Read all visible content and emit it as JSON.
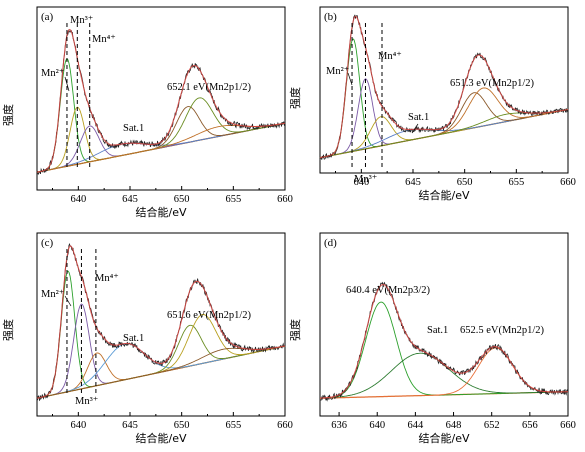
{
  "chart_data": [
    {
      "type": "line",
      "panel": "(a)",
      "xlabel": "结合能/eV",
      "ylabel": "强度",
      "xlim": [
        636,
        660
      ],
      "ylim": [
        0,
        1
      ],
      "xticks": [
        640,
        645,
        650,
        655,
        660
      ],
      "annotations": [
        {
          "text": "Mn²⁺",
          "x": 638.9
        },
        {
          "text": "Mn³⁺",
          "x": 639.9
        },
        {
          "text": "Mn⁴⁺",
          "x": 641.1
        },
        {
          "text": "Sat.1",
          "x": 644.5
        },
        {
          "text": "652.1 eV(Mn2p1/2)",
          "x": 652.1
        }
      ],
      "dashed_lines": [
        638.9,
        639.9,
        641.1
      ],
      "background_start": 0.06,
      "background_end": 0.36,
      "components": [
        {
          "name": "Mn²⁺",
          "color": "#2ca02c",
          "center": 638.9,
          "height": 0.66,
          "width": 0.65
        },
        {
          "name": "Mn³⁺",
          "color": "#b8a020",
          "center": 639.9,
          "height": 0.35,
          "width": 0.7
        },
        {
          "name": "Mn⁴⁺",
          "color": "#7b5aa6",
          "center": 641.1,
          "height": 0.22,
          "width": 0.9
        },
        {
          "name": "Sat.1",
          "color": "#5b7fc7",
          "center": 644.2,
          "height": 0.07,
          "width": 2.2
        },
        {
          "name": "Mn2p1/2 a",
          "color": "#8b5a2b",
          "center": 650.6,
          "height": 0.22,
          "width": 1.1
        },
        {
          "name": "Mn2p1/2 b",
          "color": "#6b8e23",
          "center": 651.7,
          "height": 0.26,
          "width": 1.3
        },
        {
          "name": "Mn2p1/2 c",
          "color": "#c0712a",
          "center": 653.6,
          "height": 0.06,
          "width": 2.2
        }
      ]
    },
    {
      "type": "line",
      "panel": "(b)",
      "xlabel": "结合能/eV",
      "ylabel": "强度",
      "xlim": [
        636,
        660
      ],
      "ylim": [
        0,
        1
      ],
      "xticks": [
        640,
        645,
        650,
        655,
        660
      ],
      "annotations": [
        {
          "text": "Mn²⁺",
          "x": 639.1
        },
        {
          "text": "Mn³⁺",
          "x": 640.4
        },
        {
          "text": "Mn⁴⁺",
          "x": 642.0
        },
        {
          "text": "Sat.1",
          "x": 644.5
        },
        {
          "text": "651.3 eV(Mn2p1/2)",
          "x": 651.3
        }
      ],
      "dashed_lines": [
        639.1,
        640.4,
        642.0
      ],
      "background_start": 0.05,
      "background_end": 0.38,
      "components": [
        {
          "name": "Mn²⁺",
          "color": "#2ca02c",
          "center": 639.2,
          "height": 0.77,
          "width": 0.65
        },
        {
          "name": "Mn³⁺",
          "color": "#7b5aa6",
          "center": 640.4,
          "height": 0.48,
          "width": 0.7
        },
        {
          "name": "Mn⁴⁺",
          "color": "#b8a020",
          "center": 641.9,
          "height": 0.2,
          "width": 1.0
        },
        {
          "name": "Sat.1",
          "color": "#5b7fc7",
          "center": 644.6,
          "height": 0.07,
          "width": 2.2
        },
        {
          "name": "Mn2p1/2 a",
          "color": "#8b5a2b",
          "center": 650.9,
          "height": 0.24,
          "width": 1.2
        },
        {
          "name": "Mn2p1/2 b",
          "color": "#c0712a",
          "center": 651.8,
          "height": 0.26,
          "width": 1.4
        },
        {
          "name": "Mn2p1/2 c",
          "color": "#6b8e23",
          "center": 654.0,
          "height": 0.05,
          "width": 2.0
        }
      ]
    },
    {
      "type": "line",
      "panel": "(c)",
      "xlabel": "结合能/eV",
      "ylabel": "强度",
      "xlim": [
        636,
        660
      ],
      "ylim": [
        0,
        1
      ],
      "xticks": [
        640,
        645,
        650,
        655,
        660
      ],
      "annotations": [
        {
          "text": "Mn²⁺",
          "x": 638.9
        },
        {
          "text": "Mn³⁺",
          "x": 640.3
        },
        {
          "text": "Mn⁴⁺",
          "x": 641.7
        },
        {
          "text": "Sat.1",
          "x": 644.5
        },
        {
          "text": "651.6 eV(Mn2p1/2)",
          "x": 651.6
        }
      ],
      "dashed_lines": [
        638.9,
        640.3,
        641.7
      ],
      "background_start": 0.06,
      "background_end": 0.38,
      "components": [
        {
          "name": "Mn²⁺",
          "color": "#2ca02c",
          "center": 639.0,
          "height": 0.74,
          "width": 0.65
        },
        {
          "name": "Mn³⁺",
          "color": "#7b5aa6",
          "center": 640.3,
          "height": 0.52,
          "width": 0.75
        },
        {
          "name": "Mn⁴⁺",
          "color": "#c0712a",
          "center": 641.8,
          "height": 0.2,
          "width": 0.9
        },
        {
          "name": "Sat.1",
          "color": "#5b9bd5",
          "center": 644.5,
          "height": 0.22,
          "width": 1.9
        },
        {
          "name": "Mn2p1/2 a",
          "color": "#6b8e23",
          "center": 650.8,
          "height": 0.25,
          "width": 1.1
        },
        {
          "name": "Mn2p1/2 b",
          "color": "#b8a020",
          "center": 652.0,
          "height": 0.3,
          "width": 1.3
        },
        {
          "name": "Mn2p1/2 c",
          "color": "#8b5a2b",
          "center": 654.0,
          "height": 0.06,
          "width": 2.0
        }
      ]
    },
    {
      "type": "line",
      "panel": "(d)",
      "xlabel": "结合能/eV",
      "ylabel": "强度",
      "xlim": [
        634,
        660
      ],
      "ylim": [
        0,
        1
      ],
      "xticks": [
        636,
        640,
        644,
        648,
        652,
        656,
        660
      ],
      "annotations": [
        {
          "text": "640.4 eV(Mn2p3/2)",
          "x": 640.4
        },
        {
          "text": "Sat.1",
          "x": 645.0
        },
        {
          "text": "652.5 eV(Mn2p1/2)",
          "x": 652.5
        }
      ],
      "dashed_lines": [],
      "background_start": 0.06,
      "background_end": 0.1,
      "components": [
        {
          "name": "Mn2p3/2",
          "color": "#2ca02c",
          "center": 640.4,
          "height": 0.58,
          "width": 1.6
        },
        {
          "name": "Sat.1",
          "color": "#2e7d32",
          "center": 644.5,
          "height": 0.26,
          "width": 3.0
        },
        {
          "name": "Mn2p1/2",
          "color": "#e8703a",
          "center": 652.4,
          "height": 0.28,
          "width": 1.8
        }
      ]
    }
  ]
}
